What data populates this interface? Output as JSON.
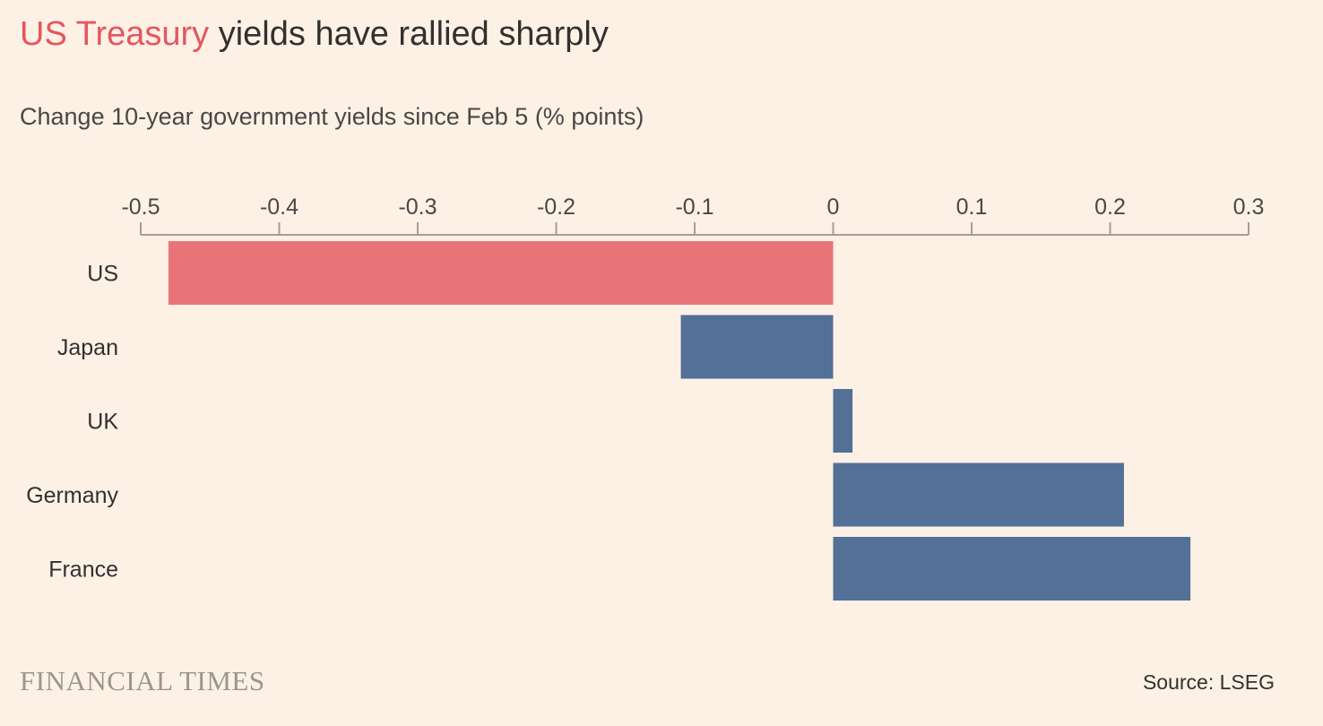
{
  "header": {
    "title_highlight": "US Treasury",
    "title_rest": " yields have rallied sharply",
    "subtitle": "Change 10-year government yields since Feb 5 (% points)"
  },
  "footer": {
    "brand": "FINANCIAL TIMES",
    "source": "Source: LSEG"
  },
  "colors": {
    "background": "#fdf1e6",
    "highlight": "#e5565e",
    "highlight_bar": "#e77577",
    "default_bar": "#537096",
    "axis": "#a59e98"
  },
  "chart_data": {
    "type": "bar",
    "orientation": "horizontal",
    "title": "US Treasury yields have rallied sharply",
    "subtitle": "Change 10-year government yields since Feb 5 (% points)",
    "categories": [
      "US",
      "Japan",
      "UK",
      "Germany",
      "France"
    ],
    "values": [
      -0.48,
      -0.11,
      0.014,
      0.21,
      0.258
    ],
    "highlight": [
      "US"
    ],
    "xlim": [
      -0.5,
      0.3
    ],
    "xticks": [
      -0.5,
      -0.4,
      -0.3,
      -0.2,
      -0.1,
      0,
      0.1,
      0.2,
      0.3
    ],
    "xtick_labels": [
      "-0.5",
      "-0.4",
      "-0.3",
      "-0.2",
      "-0.1",
      "0",
      "0.1",
      "0.2",
      "0.3"
    ],
    "xaxis_position": "top",
    "grid": false,
    "legend": "none"
  }
}
